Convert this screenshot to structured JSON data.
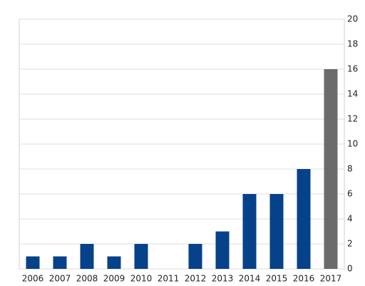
{
  "chart_data": {
    "type": "bar",
    "categories": [
      "2006",
      "2007",
      "2008",
      "2009",
      "2010",
      "2011",
      "2012",
      "2013",
      "2014",
      "2015",
      "2016",
      "2017"
    ],
    "values": [
      1,
      1,
      2,
      1,
      2,
      0,
      2,
      3,
      6,
      6,
      8,
      16
    ],
    "colors": [
      "#06428a",
      "#06428a",
      "#06428a",
      "#06428a",
      "#06428a",
      "#06428a",
      "#06428a",
      "#06428a",
      "#06428a",
      "#06428a",
      "#06428a",
      "#6b6b6b"
    ],
    "ylim": [
      0,
      20
    ],
    "yticks": [
      0,
      2,
      4,
      6,
      8,
      10,
      12,
      14,
      16,
      18,
      20
    ],
    "grid": true,
    "y_axis_side": "right"
  }
}
